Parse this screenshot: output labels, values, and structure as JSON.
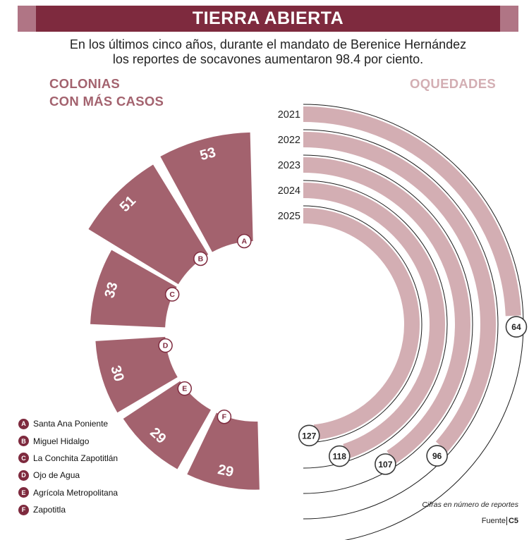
{
  "header": {
    "title": "TIERRA ABIERTA",
    "subtitle_line1": "En los últimos cinco años, durante el mandato de Berenice Hernández",
    "subtitle_line2": "los reportes de socavones aumentaron 98.4 por ciento."
  },
  "left_section": {
    "title_line1": "COLONIAS",
    "title_line2": "CON MÁS CASOS"
  },
  "right_section": {
    "title": "OQUEDADES"
  },
  "footer": {
    "note": "Cifras en número de reportes",
    "source_label": "Fuente",
    "source_name": "C5"
  },
  "colors": {
    "dark": "#7e2a3e",
    "medium": "#a3626e",
    "light": "#d3aeb3",
    "cap": "#b07585"
  },
  "chart_data": [
    {
      "type": "bar",
      "layout": "radial",
      "categories": [
        "A",
        "B",
        "C",
        "D",
        "E",
        "F"
      ],
      "labels": [
        "Santa Ana Poniente",
        "Miguel Hidalgo",
        "La Conchita Zapotitlán",
        "Ojo de Agua",
        "Agrícola Metropolitana",
        "Zapotitla"
      ],
      "values": [
        53,
        51,
        33,
        30,
        29,
        29
      ]
    },
    {
      "type": "bar",
      "layout": "radial",
      "categories": [
        "2021",
        "2022",
        "2023",
        "2024",
        "2025"
      ],
      "values": [
        64,
        96,
        107,
        118,
        127
      ]
    }
  ]
}
